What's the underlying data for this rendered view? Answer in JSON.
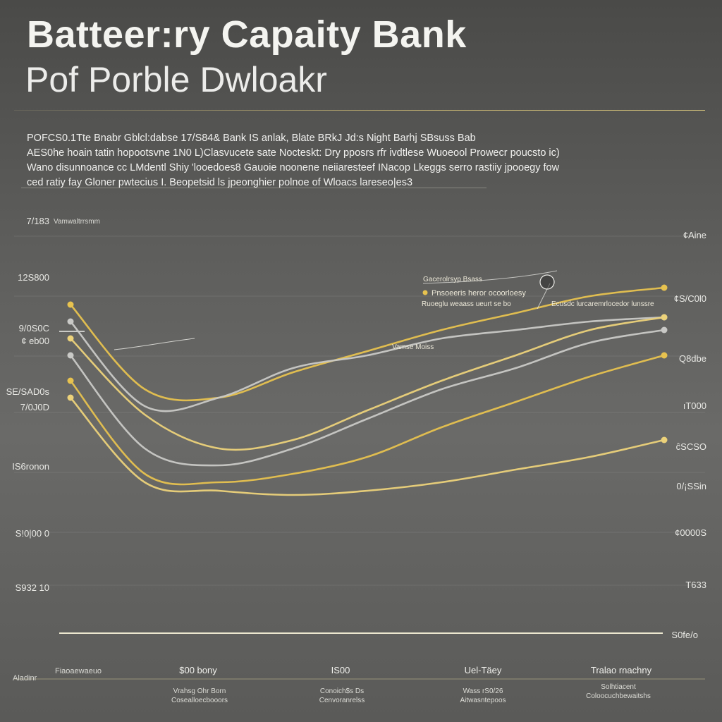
{
  "title": "Batteer:ry Capaity Bank",
  "subtitle": "Pof Porble Dwloakr",
  "description": [
    "POFCS0.1Tte Bnabr Gblcl:dabse 17/S84& Bank IS anlak, Blate BRkJ Jd:s Night Barhj SBsuss Bab",
    "AES0he hoain tatin hopootsvne 1N0 L)Clasvucete sate Nocteskt: Dry pposrs rfr ivdtlese Wuoeool Prowecr poucsto ic)",
    "Wano disunnoance cc LMdentl Shiy 'looedoes8 Gauoie noonene neiiaresteef INacop Lkeggs serro rastiiy jpooegy fow",
    "ced ratiy fay Gloner pwtecius I. Beopetsid ls jpeonghier polnoe of Wloacs lareseo|es3"
  ],
  "y_axis_left": [
    "7/183",
    "12S800",
    "9/0S0C",
    "¢ eb00",
    "SE/SAD0s",
    "7/0J0D",
    "IS6ronon",
    "S!0|00 0",
    "S932 10"
  ],
  "y_axis_left_small": "Vamwaltrrsmm",
  "y_axis_right": [
    "¢Aine",
    "¢S/C0l0",
    "Q8dbe",
    "ıT000",
    "ĉSCSO",
    "0/¡SSin",
    "¢0000S",
    "T633",
    "S0fe/o"
  ],
  "annotations": {
    "callout_title": "Gacerolrsyp Bsass",
    "callout_line1": "Pnsoeeris heror ocoorloesy",
    "callout_line2": "Ruoeglu weaass ueurt se bo",
    "callout_right": "Ecusdc lurcaremrlocedor lunssre",
    "mid_label": "Vamse Moiss",
    "left_label": "——"
  },
  "x_axis": {
    "corner_label": "Aladinr",
    "first_label": "Fiaoaewaeuo",
    "labels": [
      "$00 bony",
      "IS00",
      "Uel-Täey",
      "Tralao rnachny"
    ],
    "sublabels": [
      [
        "Vrahsg Ohr Born",
        "Cosealloecbooors"
      ],
      [
        "Conoich$s Ds",
        "Cenvoranrelss"
      ],
      [
        "Wass rS0/26",
        "Aitwasntepoos"
      ],
      [
        "Solhtiacent",
        "Coloocuchbewaitshs"
      ]
    ]
  },
  "colors": {
    "gold": "#e7c24f",
    "gold_light": "#ecd27a",
    "silver": "#c9c9c6",
    "text": "#f2f2ef"
  },
  "chart_data": {
    "type": "line",
    "x": [
      0,
      1,
      2,
      3,
      4,
      5,
      6,
      7,
      8
    ],
    "xlim": [
      0,
      8
    ],
    "ylim": [
      0,
      100
    ],
    "grid": true,
    "series": [
      {
        "color": "gold",
        "values": [
          78,
          58,
          56,
          62,
          67,
          72,
          76,
          80,
          82
        ]
      },
      {
        "color": "silver",
        "values": [
          74,
          54,
          56,
          63,
          66,
          70,
          72,
          74,
          75
        ]
      },
      {
        "color": "gold_light",
        "values": [
          70,
          52,
          44,
          46,
          53,
          60,
          66,
          72,
          75
        ]
      },
      {
        "color": "silver",
        "values": [
          66,
          44,
          40,
          44,
          51,
          58,
          63,
          69,
          72
        ]
      },
      {
        "color": "gold",
        "values": [
          60,
          38,
          36,
          38,
          42,
          49,
          55,
          61,
          66
        ]
      },
      {
        "color": "gold_light",
        "values": [
          56,
          36,
          34,
          33,
          34,
          36,
          39,
          42,
          46
        ]
      }
    ]
  }
}
